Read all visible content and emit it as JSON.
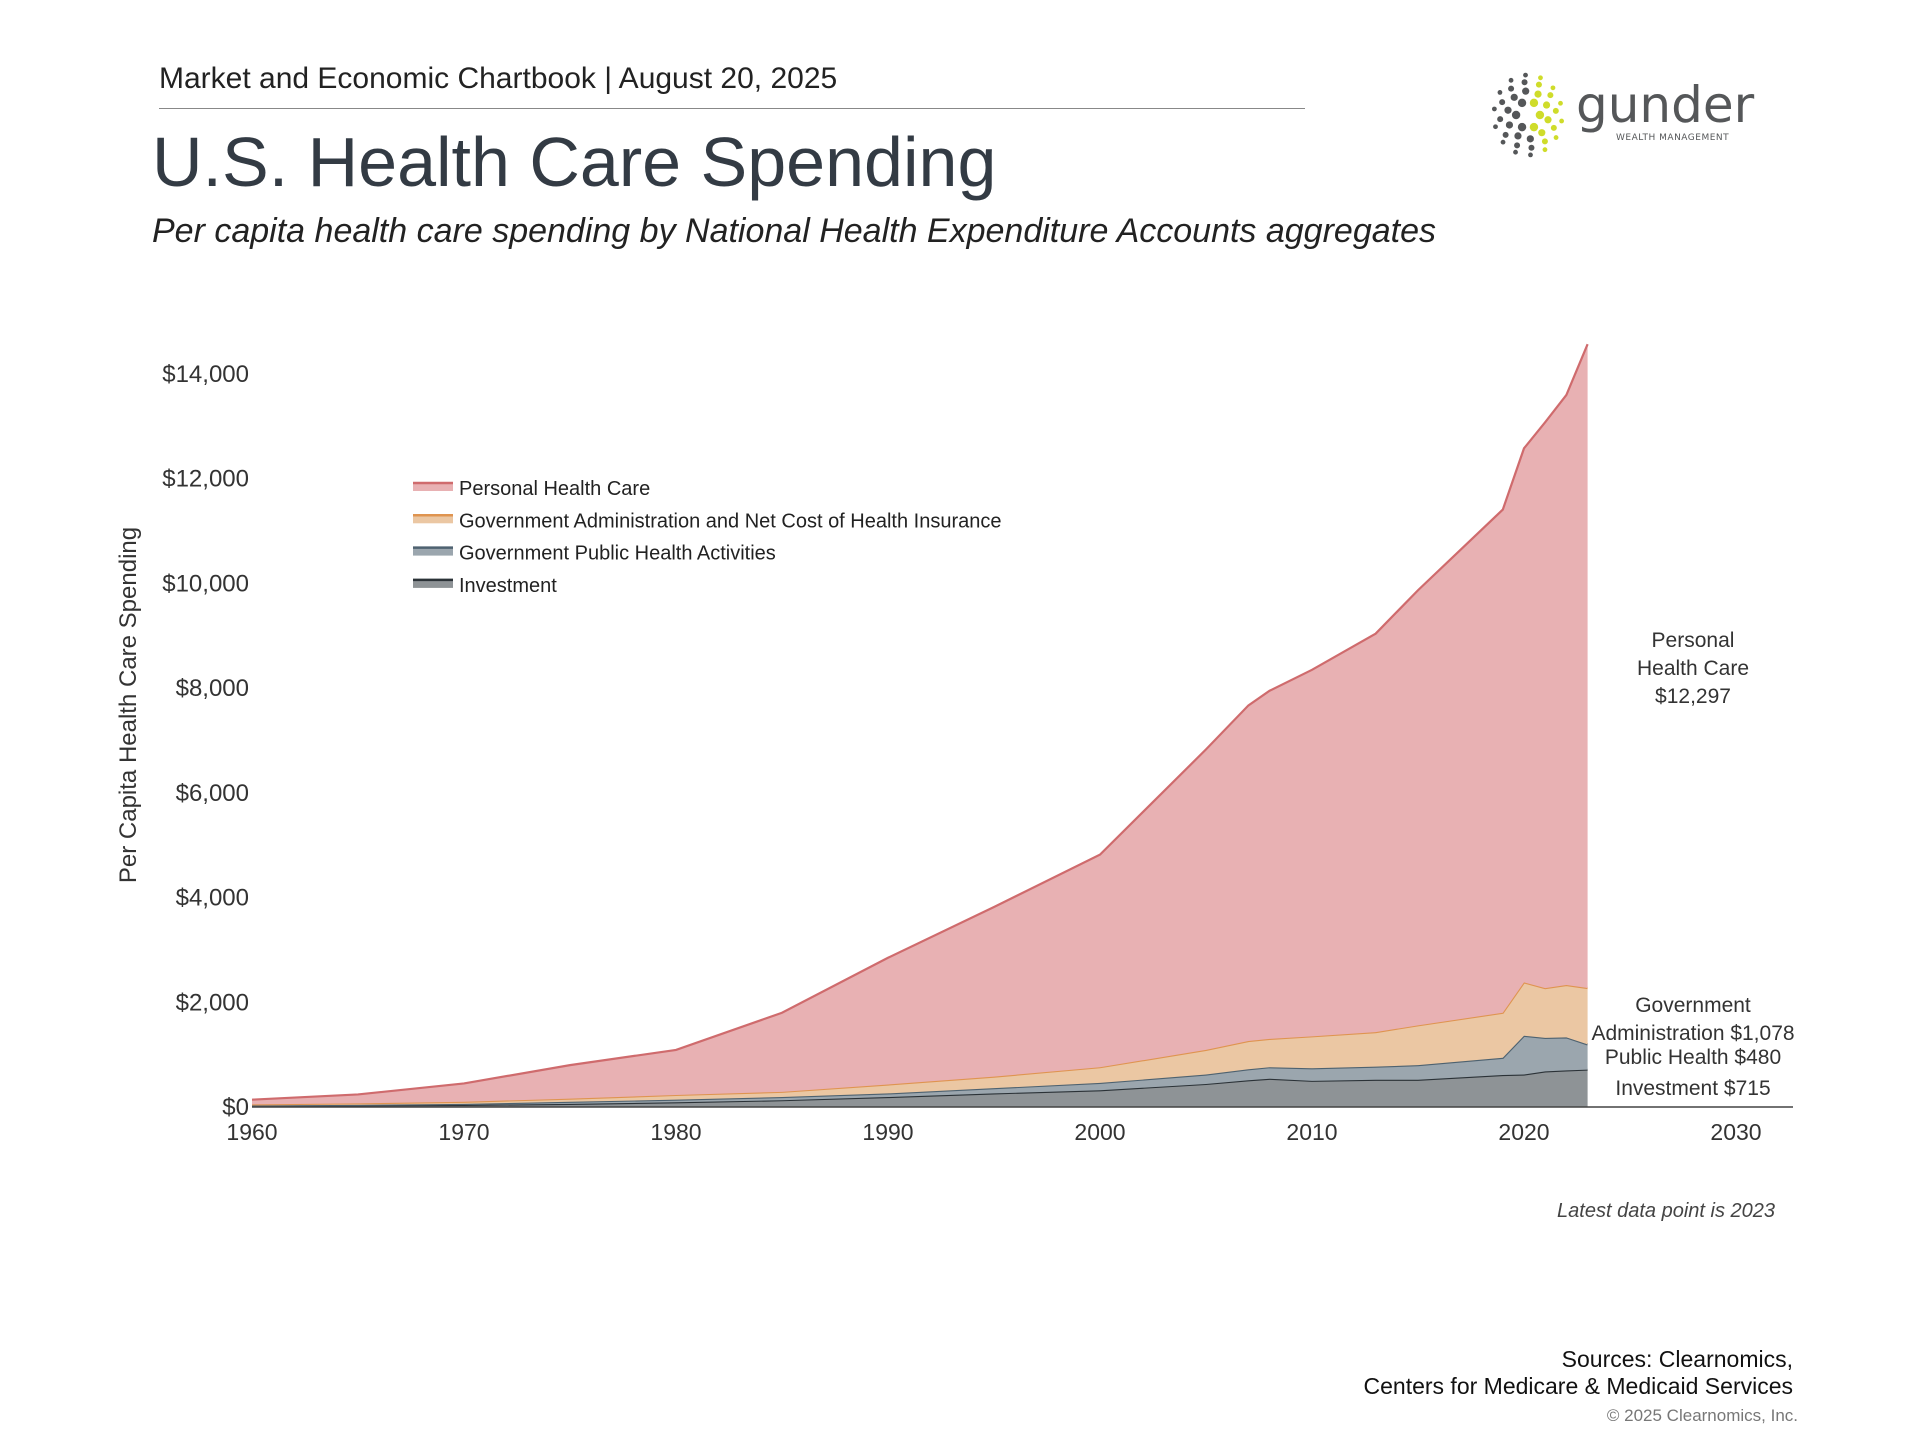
{
  "header": {
    "text": "Market and Economic Chartbook | August 20, 2025"
  },
  "title": "U.S. Health Care Spending",
  "subtitle": "Per capita health care spending by National Health Expenditure Accounts aggregates",
  "logo": {
    "name": "gunder",
    "tagline": "WEALTH MANAGEMENT",
    "colors": {
      "dark": "#555759",
      "accent": "#cfdc2a"
    }
  },
  "chart_data": {
    "type": "area",
    "stacked": true,
    "ylabel": "Per Capita Health Care Spending",
    "xlabel": "",
    "xlim": [
      1960,
      2033
    ],
    "ylim": [
      0,
      14600
    ],
    "x_ticks": [
      "1960",
      "1970",
      "1980",
      "1990",
      "2000",
      "2010",
      "2020",
      "2030"
    ],
    "y_ticks": [
      "$0",
      "$2,000",
      "$4,000",
      "$6,000",
      "$8,000",
      "$10,000",
      "$12,000",
      "$14,000"
    ],
    "y_tick_values": [
      0,
      2000,
      4000,
      6000,
      8000,
      10000,
      12000,
      14000
    ],
    "grid": false,
    "legend_position": "top-left",
    "x": [
      1960,
      1965,
      1970,
      1975,
      1980,
      1985,
      1990,
      1995,
      2000,
      2005,
      2007,
      2008,
      2010,
      2013,
      2015,
      2019,
      2020,
      2021,
      2022,
      2023
    ],
    "series": [
      {
        "name": "Investment",
        "fill": "#8e9396",
        "stroke": "#2b3237",
        "values": [
          20,
          30,
          40,
          60,
          90,
          130,
          190,
          260,
          320,
          440,
          510,
          540,
          500,
          520,
          520,
          610,
          620,
          680,
          700,
          715
        ]
      },
      {
        "name": "Government Public Health Activities",
        "fill": "#9ba6ae",
        "stroke": "#4e6270",
        "values": [
          10,
          10,
          20,
          40,
          50,
          60,
          70,
          100,
          140,
          180,
          210,
          220,
          240,
          250,
          280,
          330,
          740,
          640,
          630,
          480
        ]
      },
      {
        "name": "Government Administration and Net Cost of Health Insurance",
        "fill": "#ebc7a3",
        "stroke": "#df9450",
        "values": [
          20,
          30,
          40,
          60,
          90,
          100,
          170,
          220,
          300,
          470,
          540,
          540,
          610,
          660,
          760,
          860,
          1020,
          950,
          1000,
          1078
        ]
      },
      {
        "name": "Personal Health Care",
        "fill": "#e8b1b3",
        "stroke": "#cf6b6d",
        "values": [
          90,
          170,
          350,
          640,
          860,
          1510,
          2420,
          3240,
          4060,
          5740,
          6410,
          6650,
          7000,
          7610,
          8310,
          9610,
          10200,
          10810,
          11270,
          12297
        ]
      }
    ],
    "legend_order": [
      "Personal Health Care",
      "Government Administration and Net Cost of Health Insurance",
      "Government Public Health Activities",
      "Investment"
    ],
    "annotations": {
      "personal": [
        "Personal",
        "Health Care",
        "$12,297"
      ],
      "admin": [
        "Government",
        "Administration $1,078"
      ],
      "public_health": "Public Health $480",
      "investment": "Investment $715"
    },
    "note": "Latest data point is 2023"
  },
  "footer": {
    "sources_line1": "Sources: Clearnomics,",
    "sources_line2": "Centers for Medicare & Medicaid Services",
    "copyright": "© 2025 Clearnomics, Inc."
  }
}
